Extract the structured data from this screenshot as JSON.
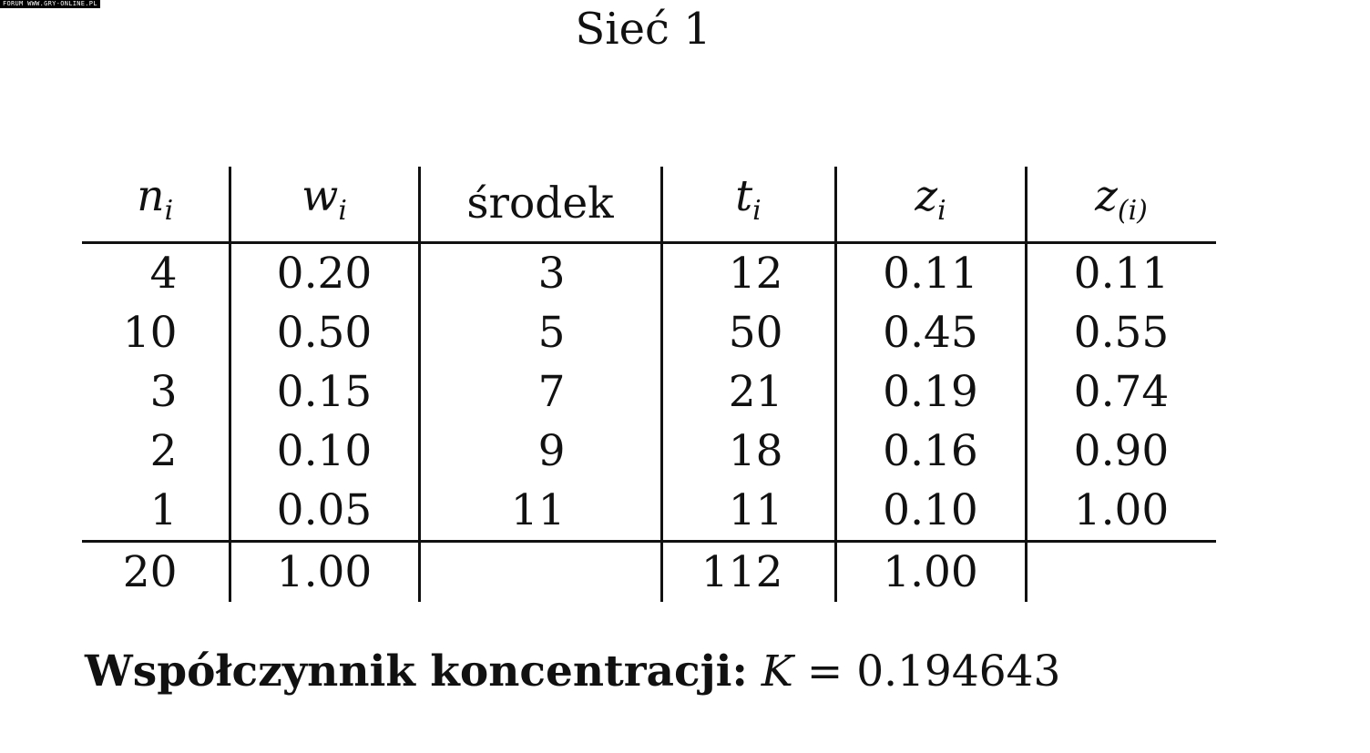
{
  "watermark": "FORUM WWW.GRY-ONLINE.PL",
  "title": "Sieć 1",
  "table": {
    "headers": [
      {
        "base": "n",
        "sub": "i"
      },
      {
        "base": "w",
        "sub": "i"
      },
      {
        "base": "środek",
        "sub": ""
      },
      {
        "base": "t",
        "sub": "i"
      },
      {
        "base": "z",
        "sub": "i"
      },
      {
        "base": "z",
        "sub": "(i)"
      }
    ],
    "rows": [
      [
        "4",
        "0.20",
        "3",
        "12",
        "0.11",
        "0.11"
      ],
      [
        "10",
        "0.50",
        "5",
        "50",
        "0.45",
        "0.55"
      ],
      [
        "3",
        "0.15",
        "7",
        "21",
        "0.19",
        "0.74"
      ],
      [
        "2",
        "0.10",
        "9",
        "18",
        "0.16",
        "0.90"
      ],
      [
        "1",
        "0.05",
        "11",
        "11",
        "0.10",
        "1.00"
      ]
    ],
    "totals": [
      "20",
      "1.00",
      "",
      "112",
      "1.00",
      ""
    ]
  },
  "footer": {
    "label": "Współczynnik koncentracji:",
    "variable": "K",
    "equals": "=",
    "value": "0.194643"
  }
}
